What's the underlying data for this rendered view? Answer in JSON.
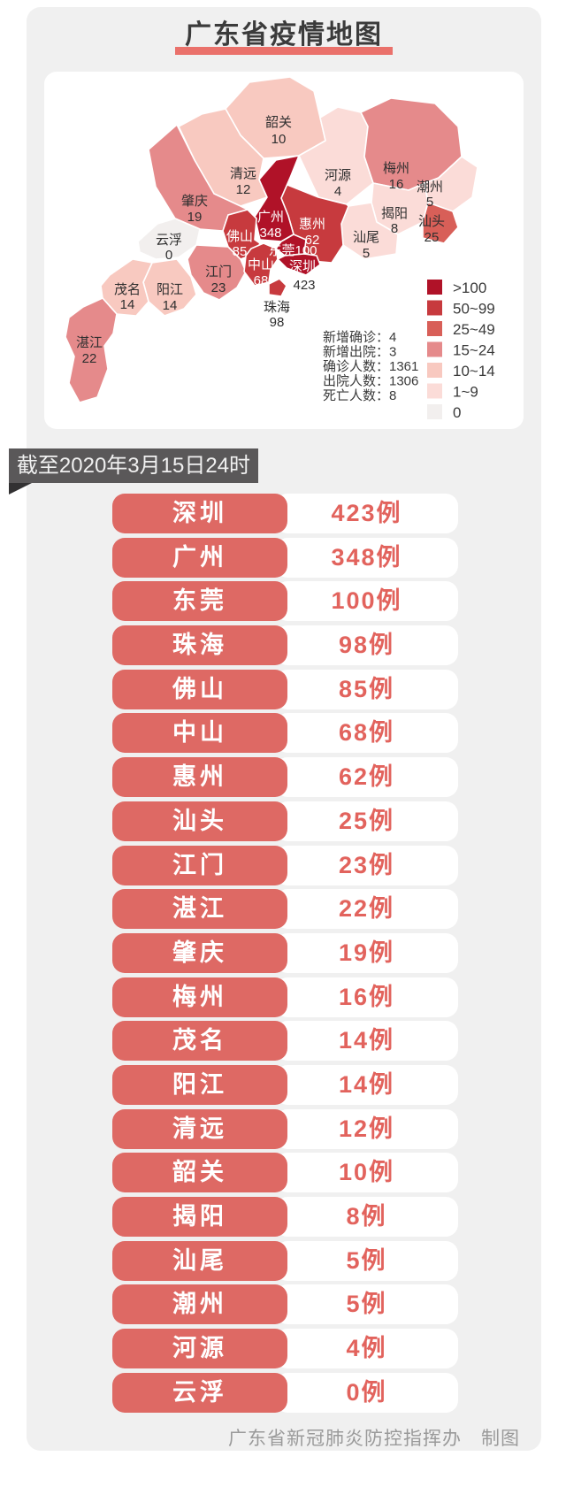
{
  "header": {
    "title": "广东省疫情地图"
  },
  "map": {
    "stats": [
      {
        "label": "新增确诊",
        "value": "4"
      },
      {
        "label": "新增出院",
        "value": "3"
      },
      {
        "label": "确诊人数",
        "value": "1361"
      },
      {
        "label": "出院人数",
        "value": "1306"
      },
      {
        "label": "死亡人数",
        "value": "8"
      }
    ],
    "legend": [
      {
        "range": ">100",
        "color": "#b01228"
      },
      {
        "range": "50~99",
        "color": "#c73a3e"
      },
      {
        "range": "25~49",
        "color": "#d85f58"
      },
      {
        "range": "15~24",
        "color": "#e58a8b"
      },
      {
        "range": "10~14",
        "color": "#f8c9c0"
      },
      {
        "range": "1~9",
        "color": "#fbdcd8"
      },
      {
        "range": "0",
        "color": "#f2efee"
      }
    ],
    "regions": [
      {
        "id": "shaoguan",
        "name": "韶关",
        "cases": "10",
        "fill": "#f8c9c0",
        "label_color": "#2f2f2f",
        "value_color": "#2f2f2f"
      },
      {
        "id": "qingyuan",
        "name": "清远",
        "cases": "12",
        "fill": "#f8c9c0",
        "label_color": "#2f2f2f",
        "value_color": "#2f2f2f"
      },
      {
        "id": "heyuan",
        "name": "河源",
        "cases": "4",
        "fill": "#fbdcd8",
        "label_color": "#2f2f2f",
        "value_color": "#2f2f2f"
      },
      {
        "id": "meizhou",
        "name": "梅州",
        "cases": "16",
        "fill": "#e58a8b",
        "label_color": "#2f2f2f",
        "value_color": "#2f2f2f"
      },
      {
        "id": "chaozhou",
        "name": "潮州",
        "cases": "5",
        "fill": "#fbdcd8",
        "label_color": "#2f2f2f",
        "value_color": "#2f2f2f"
      },
      {
        "id": "jieyang",
        "name": "揭阳",
        "cases": "8",
        "fill": "#fbdcd8",
        "label_color": "#2f2f2f",
        "value_color": "#2f2f2f"
      },
      {
        "id": "shantou",
        "name": "汕头",
        "cases": "25",
        "fill": "#d85f58",
        "label_color": "#2f2f2f",
        "value_color": "#2f2f2f"
      },
      {
        "id": "shanwei",
        "name": "汕尾",
        "cases": "5",
        "fill": "#fbdcd8",
        "label_color": "#2f2f2f",
        "value_color": "#2f2f2f"
      },
      {
        "id": "zhaoqing",
        "name": "肇庆",
        "cases": "19",
        "fill": "#e58a8b",
        "label_color": "#2f2f2f",
        "value_color": "#2f2f2f"
      },
      {
        "id": "yunfu",
        "name": "云浮",
        "cases": "0",
        "fill": "#f2efee",
        "label_color": "#2f2f2f",
        "value_color": "#2f2f2f"
      },
      {
        "id": "jiangmen",
        "name": "江门",
        "cases": "23",
        "fill": "#e58a8b",
        "label_color": "#2f2f2f",
        "value_color": "#2f2f2f"
      },
      {
        "id": "yangjiang",
        "name": "阳江",
        "cases": "14",
        "fill": "#f8c9c0",
        "label_color": "#2f2f2f",
        "value_color": "#2f2f2f"
      },
      {
        "id": "maoming",
        "name": "茂名",
        "cases": "14",
        "fill": "#f8c9c0",
        "label_color": "#2f2f2f",
        "value_color": "#2f2f2f"
      },
      {
        "id": "zhanjiang",
        "name": "湛江",
        "cases": "22",
        "fill": "#e58a8b",
        "label_color": "#2f2f2f",
        "value_color": "#2f2f2f"
      },
      {
        "id": "huizhou",
        "name": "惠州",
        "cases": "62",
        "fill": "#c73a3e",
        "label_color": "#ffffff",
        "value_color": "#ffffff"
      },
      {
        "id": "guangzhou",
        "name": "广州",
        "cases": "348",
        "fill": "#b01228",
        "label_color": "#ffffff",
        "value_color": "#ffffff"
      },
      {
        "id": "foshan",
        "name": "佛山",
        "cases": "85",
        "fill": "#c73a3e",
        "label_color": "#ffffff",
        "value_color": "#ffffff"
      },
      {
        "id": "zhongshan",
        "name": "中山",
        "cases": "68",
        "fill": "#c73a3e",
        "label_color": "#ffffff",
        "value_color": "#ffffff"
      },
      {
        "id": "dongguan",
        "name": "东莞",
        "cases": "100",
        "fill": "#b01228",
        "label_color": "#ffffff",
        "value_color": "#ffffff",
        "inline": true
      },
      {
        "id": "shenzhen",
        "name": "深圳",
        "cases": "423",
        "fill": "#b01228",
        "label_color": "#ffffff",
        "value_color": "#2f2f2f"
      },
      {
        "id": "zhuhai",
        "name": "珠海",
        "cases": "98",
        "fill": "#c73a3e",
        "label_color": "#2f2f2f",
        "value_color": "#2f2f2f"
      }
    ]
  },
  "date_badge": {
    "text": "截至2020年3月15日24时"
  },
  "case_list": {
    "rows": [
      {
        "city": "深圳",
        "cases": "423例"
      },
      {
        "city": "广州",
        "cases": "348例"
      },
      {
        "city": "东莞",
        "cases": "100例"
      },
      {
        "city": "珠海",
        "cases": "98例"
      },
      {
        "city": "佛山",
        "cases": "85例"
      },
      {
        "city": "中山",
        "cases": "68例"
      },
      {
        "city": "惠州",
        "cases": "62例"
      },
      {
        "city": "汕头",
        "cases": "25例"
      },
      {
        "city": "江门",
        "cases": "23例"
      },
      {
        "city": "湛江",
        "cases": "22例"
      },
      {
        "city": "肇庆",
        "cases": "19例"
      },
      {
        "city": "梅州",
        "cases": "16例"
      },
      {
        "city": "茂名",
        "cases": "14例"
      },
      {
        "city": "阳江",
        "cases": "14例"
      },
      {
        "city": "清远",
        "cases": "12例"
      },
      {
        "city": "韶关",
        "cases": "10例"
      },
      {
        "city": "揭阳",
        "cases": "8例"
      },
      {
        "city": "汕尾",
        "cases": "5例"
      },
      {
        "city": "潮州",
        "cases": "5例"
      },
      {
        "city": "河源",
        "cases": "4例"
      },
      {
        "city": "云浮",
        "cases": "0例"
      }
    ]
  },
  "footer": {
    "credit": "广东省新冠肺炎防控指挥办　制图"
  },
  "theme": {
    "page_bg": "#ffffff",
    "panel_bg": "#f0f0f0",
    "title_color": "#3b3b3b",
    "title_underline": "#ea716b",
    "badge_bg": "#5a5859",
    "row_red": "#de6964",
    "value_red": "#e2635d",
    "footer_gray": "#9a9a9a"
  }
}
